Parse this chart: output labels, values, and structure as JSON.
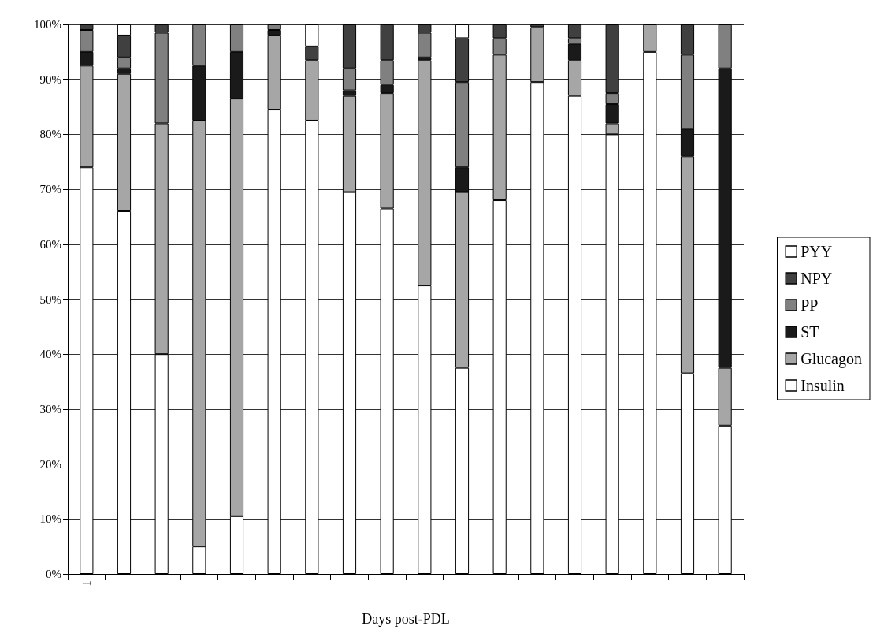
{
  "chart_data": {
    "type": "bar",
    "stacked": true,
    "xlabel": "Days post-PDL",
    "categories": [
      "1",
      null,
      null,
      null,
      null,
      null,
      null,
      null,
      null,
      null,
      null,
      null,
      null,
      null,
      null,
      null,
      null,
      null
    ],
    "series": [
      {
        "name": "Insulin",
        "color": "#ffffff",
        "values": [
          74,
          66,
          40,
          5,
          10.5,
          84.5,
          82.5,
          69.5,
          66.5,
          52.5,
          37.5,
          68,
          89.5,
          87,
          80,
          95,
          36.5,
          27
        ]
      },
      {
        "name": "Glucagon",
        "color": "#a6a6a6",
        "values": [
          18.5,
          25,
          42,
          77.5,
          76,
          13.5,
          11,
          17.5,
          21,
          41,
          32,
          26.5,
          10,
          6.5,
          2,
          5,
          39.5,
          10.5
        ]
      },
      {
        "name": "ST",
        "color": "#1a1a1a",
        "values": [
          2.5,
          1,
          0,
          10,
          8.5,
          1,
          0,
          1,
          1.5,
          0.5,
          4.5,
          0,
          0,
          3,
          3.5,
          0,
          5,
          54.5
        ]
      },
      {
        "name": "PP",
        "color": "#808080",
        "values": [
          4,
          2,
          16.5,
          7.5,
          5,
          1,
          0,
          4,
          4.5,
          4.5,
          15.5,
          3,
          0,
          1,
          2,
          0,
          13.5,
          8
        ]
      },
      {
        "name": "NPY",
        "color": "#404040",
        "values": [
          1,
          4,
          1.5,
          0,
          0,
          0,
          2.5,
          8,
          6.5,
          1.5,
          8,
          2.5,
          0.5,
          2.5,
          12.5,
          0,
          5.5,
          0
        ]
      },
      {
        "name": "PYY",
        "color": "#ffffff",
        "values": [
          0,
          2,
          0,
          0,
          0,
          0,
          4,
          0,
          0,
          0,
          2.5,
          0,
          0,
          0,
          0,
          0,
          0,
          0
        ]
      }
    ],
    "ylim": [
      0,
      100
    ],
    "yticks": [
      {
        "value": 0,
        "label": "0%"
      },
      {
        "value": 10,
        "label": "10%"
      },
      {
        "value": 20,
        "label": "20%"
      },
      {
        "value": 30,
        "label": "30%"
      },
      {
        "value": 40,
        "label": "40%"
      },
      {
        "value": 50,
        "label": "50%"
      },
      {
        "value": 60,
        "label": "60%"
      },
      {
        "value": 70,
        "label": "70%"
      },
      {
        "value": 80,
        "label": "80%"
      },
      {
        "value": 90,
        "label": "90%"
      },
      {
        "value": 100,
        "label": "100%"
      }
    ],
    "grid": "y",
    "legend": "right"
  }
}
